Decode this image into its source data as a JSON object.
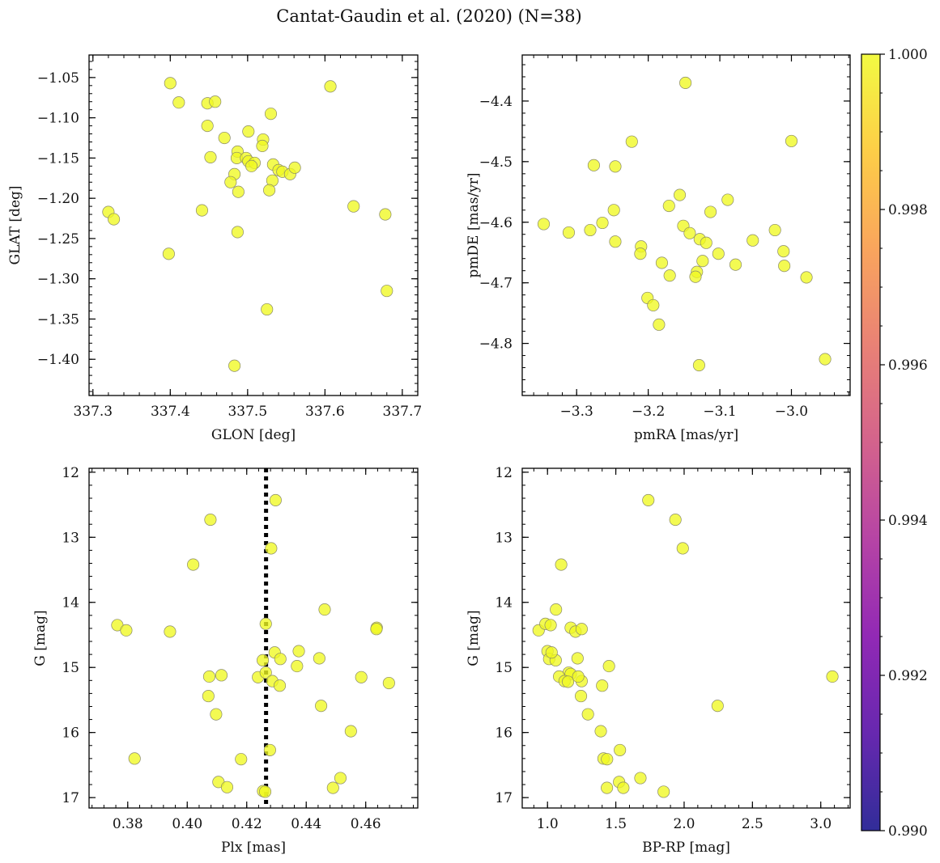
{
  "figure": {
    "title": "Cantat-Gaudin et al. (2020) (N=38)"
  },
  "colorbar": {
    "min": 0.99,
    "max": 1.0,
    "ticks": [
      "1.000",
      "0.998",
      "0.996",
      "0.994",
      "0.992",
      "0.990"
    ],
    "colormap": "plasma",
    "point_color": "#f0f921"
  },
  "chart_data": [
    {
      "type": "scatter",
      "name": "glon-glat",
      "title": "",
      "xlabel": "GLON [deg]",
      "ylabel": "GLAT [deg]",
      "xlim": [
        337.295,
        337.72
      ],
      "ylim": [
        -1.445,
        -1.022
      ],
      "y_inverted": false,
      "xticks": [
        337.3,
        337.4,
        337.5,
        337.6,
        337.7
      ],
      "yticks": [
        -1.05,
        -1.1,
        -1.15,
        -1.2,
        -1.25,
        -1.3,
        -1.35,
        -1.4
      ],
      "xtick_labels": [
        "337.3",
        "337.4",
        "337.5",
        "337.6",
        "337.7"
      ],
      "ytick_labels": [
        "−1.05",
        "−1.10",
        "−1.15",
        "−1.20",
        "−1.25",
        "−1.30",
        "−1.35",
        "−1.40"
      ],
      "x": [
        337.4,
        337.411,
        337.448,
        337.458,
        337.607,
        337.53,
        337.448,
        337.47,
        337.501,
        337.52,
        337.519,
        337.487,
        337.486,
        337.452,
        337.498,
        337.501,
        337.509,
        337.505,
        337.533,
        337.54,
        337.545,
        337.555,
        337.561,
        337.483,
        337.478,
        337.532,
        337.488,
        337.528,
        337.441,
        337.637,
        337.678,
        337.32,
        337.327,
        337.487,
        337.398,
        337.68,
        337.525,
        337.483
      ],
      "y": [
        -1.057,
        -1.081,
        -1.082,
        -1.08,
        -1.061,
        -1.095,
        -1.11,
        -1.125,
        -1.117,
        -1.127,
        -1.135,
        -1.142,
        -1.15,
        -1.149,
        -1.15,
        -1.154,
        -1.156,
        -1.16,
        -1.158,
        -1.165,
        -1.167,
        -1.17,
        -1.162,
        -1.17,
        -1.18,
        -1.178,
        -1.192,
        -1.19,
        -1.215,
        -1.21,
        -1.22,
        -1.217,
        -1.226,
        -1.242,
        -1.269,
        -1.315,
        -1.338,
        -1.408
      ]
    },
    {
      "type": "scatter",
      "name": "pmra-pmde",
      "title": "",
      "xlabel": "pmRA [mas/yr]",
      "ylabel": "pmDE [mas/yr]",
      "xlim": [
        -3.376,
        -2.918
      ],
      "ylim": [
        -4.886,
        -4.324
      ],
      "y_inverted": false,
      "xticks": [
        -3.3,
        -3.2,
        -3.1,
        -3.0
      ],
      "yticks": [
        -4.4,
        -4.5,
        -4.6,
        -4.7,
        -4.8
      ],
      "xtick_labels": [
        "−3.3",
        "−3.2",
        "−3.1",
        "−3.0"
      ],
      "ytick_labels": [
        "−4.4",
        "−4.5",
        "−4.6",
        "−4.7",
        "−4.8"
      ],
      "x": [
        -3.148,
        -3.223,
        -3.276,
        -3.246,
        -3.0,
        -3.156,
        -3.248,
        -3.264,
        -3.171,
        -3.089,
        -3.113,
        -3.151,
        -3.142,
        -3.023,
        -3.346,
        -3.311,
        -3.281,
        -3.246,
        -3.128,
        -3.119,
        -3.054,
        -3.011,
        -3.01,
        -3.21,
        -3.211,
        -3.102,
        -3.078,
        -3.181,
        -3.17,
        -3.124,
        -3.132,
        -3.134,
        -2.979,
        -3.201,
        -3.193,
        -3.185,
        -2.953,
        -3.129
      ],
      "y": [
        -4.37,
        -4.467,
        -4.506,
        -4.508,
        -4.466,
        -4.555,
        -4.58,
        -4.601,
        -4.573,
        -4.563,
        -4.583,
        -4.606,
        -4.618,
        -4.613,
        -4.603,
        -4.617,
        -4.613,
        -4.632,
        -4.628,
        -4.634,
        -4.63,
        -4.648,
        -4.672,
        -4.64,
        -4.652,
        -4.652,
        -4.67,
        -4.667,
        -4.688,
        -4.664,
        -4.682,
        -4.69,
        -4.691,
        -4.725,
        -4.737,
        -4.769,
        -4.826,
        -4.836
      ]
    },
    {
      "type": "scatter",
      "name": "plx-g",
      "title": "",
      "xlabel": "Plx [mas]",
      "ylabel": "G [mag]",
      "xlim": [
        0.367,
        0.4775
      ],
      "ylim": [
        17.16,
        11.94
      ],
      "y_inverted": true,
      "vline": {
        "x": 0.4265,
        "style": "dotted",
        "color": "#000000"
      },
      "xticks": [
        0.38,
        0.4,
        0.42,
        0.44,
        0.46
      ],
      "yticks": [
        12,
        13,
        14,
        15,
        16,
        17
      ],
      "xtick_labels": [
        "0.38",
        "0.40",
        "0.42",
        "0.44",
        "0.46"
      ],
      "ytick_labels": [
        "12",
        "13",
        "14",
        "15",
        "16",
        "17"
      ],
      "x": [
        0.4297,
        0.4078,
        0.4282,
        0.402,
        0.4462,
        0.3765,
        0.3795,
        0.3942,
        0.4264,
        0.4637,
        0.4636,
        0.4294,
        0.4444,
        0.4313,
        0.4375,
        0.4074,
        0.4115,
        0.4238,
        0.4264,
        0.4369,
        0.4585,
        0.4254,
        0.4286,
        0.4678,
        0.4311,
        0.4071,
        0.445,
        0.4097,
        0.455,
        0.4278,
        0.4181,
        0.3823,
        0.4515,
        0.4105,
        0.4134,
        0.449,
        0.4255,
        0.4262
      ],
      "y": [
        12.43,
        12.73,
        13.17,
        13.42,
        14.11,
        14.35,
        14.43,
        14.45,
        14.33,
        14.39,
        14.41,
        14.77,
        14.86,
        14.87,
        14.75,
        15.14,
        15.12,
        15.15,
        15.08,
        14.98,
        15.15,
        14.89,
        15.21,
        15.24,
        15.28,
        15.44,
        15.59,
        15.72,
        15.98,
        16.27,
        16.41,
        16.4,
        16.7,
        16.76,
        16.84,
        16.85,
        16.9,
        16.91
      ]
    },
    {
      "type": "scatter",
      "name": "bprp-g",
      "title": "",
      "xlabel": "BP-RP [mag]",
      "ylabel": "G [mag]",
      "xlim": [
        0.815,
        3.215
      ],
      "ylim": [
        17.16,
        11.94
      ],
      "y_inverted": true,
      "xticks": [
        1.0,
        1.5,
        2.0,
        2.5,
        3.0
      ],
      "yticks": [
        12,
        13,
        14,
        15,
        16,
        17
      ],
      "xtick_labels": [
        "1.0",
        "1.5",
        "2.0",
        "2.5",
        "3.0"
      ],
      "ytick_labels": [
        "12",
        "13",
        "14",
        "15",
        "16",
        "17"
      ],
      "x": [
        1.738,
        1.936,
        1.99,
        1.1,
        1.062,
        0.935,
        0.985,
        1.023,
        1.17,
        1.205,
        1.25,
        1.0,
        1.012,
        1.06,
        1.22,
        1.155,
        1.17,
        1.085,
        1.125,
        1.25,
        1.45,
        1.4,
        3.085,
        1.245,
        1.15,
        1.296,
        2.245,
        1.39,
        1.53,
        1.41,
        1.436,
        1.524,
        1.555,
        1.68,
        1.85,
        1.225,
        1.03,
        1.435
      ],
      "y": [
        12.43,
        12.73,
        13.17,
        13.42,
        14.11,
        14.43,
        14.33,
        14.35,
        14.39,
        14.45,
        14.41,
        14.75,
        14.87,
        14.89,
        14.86,
        15.08,
        15.1,
        15.14,
        15.21,
        15.21,
        14.98,
        15.28,
        15.14,
        15.44,
        15.22,
        15.72,
        15.59,
        15.98,
        16.27,
        16.4,
        16.41,
        16.76,
        16.85,
        16.7,
        16.91,
        15.14,
        14.77,
        16.85
      ]
    }
  ]
}
